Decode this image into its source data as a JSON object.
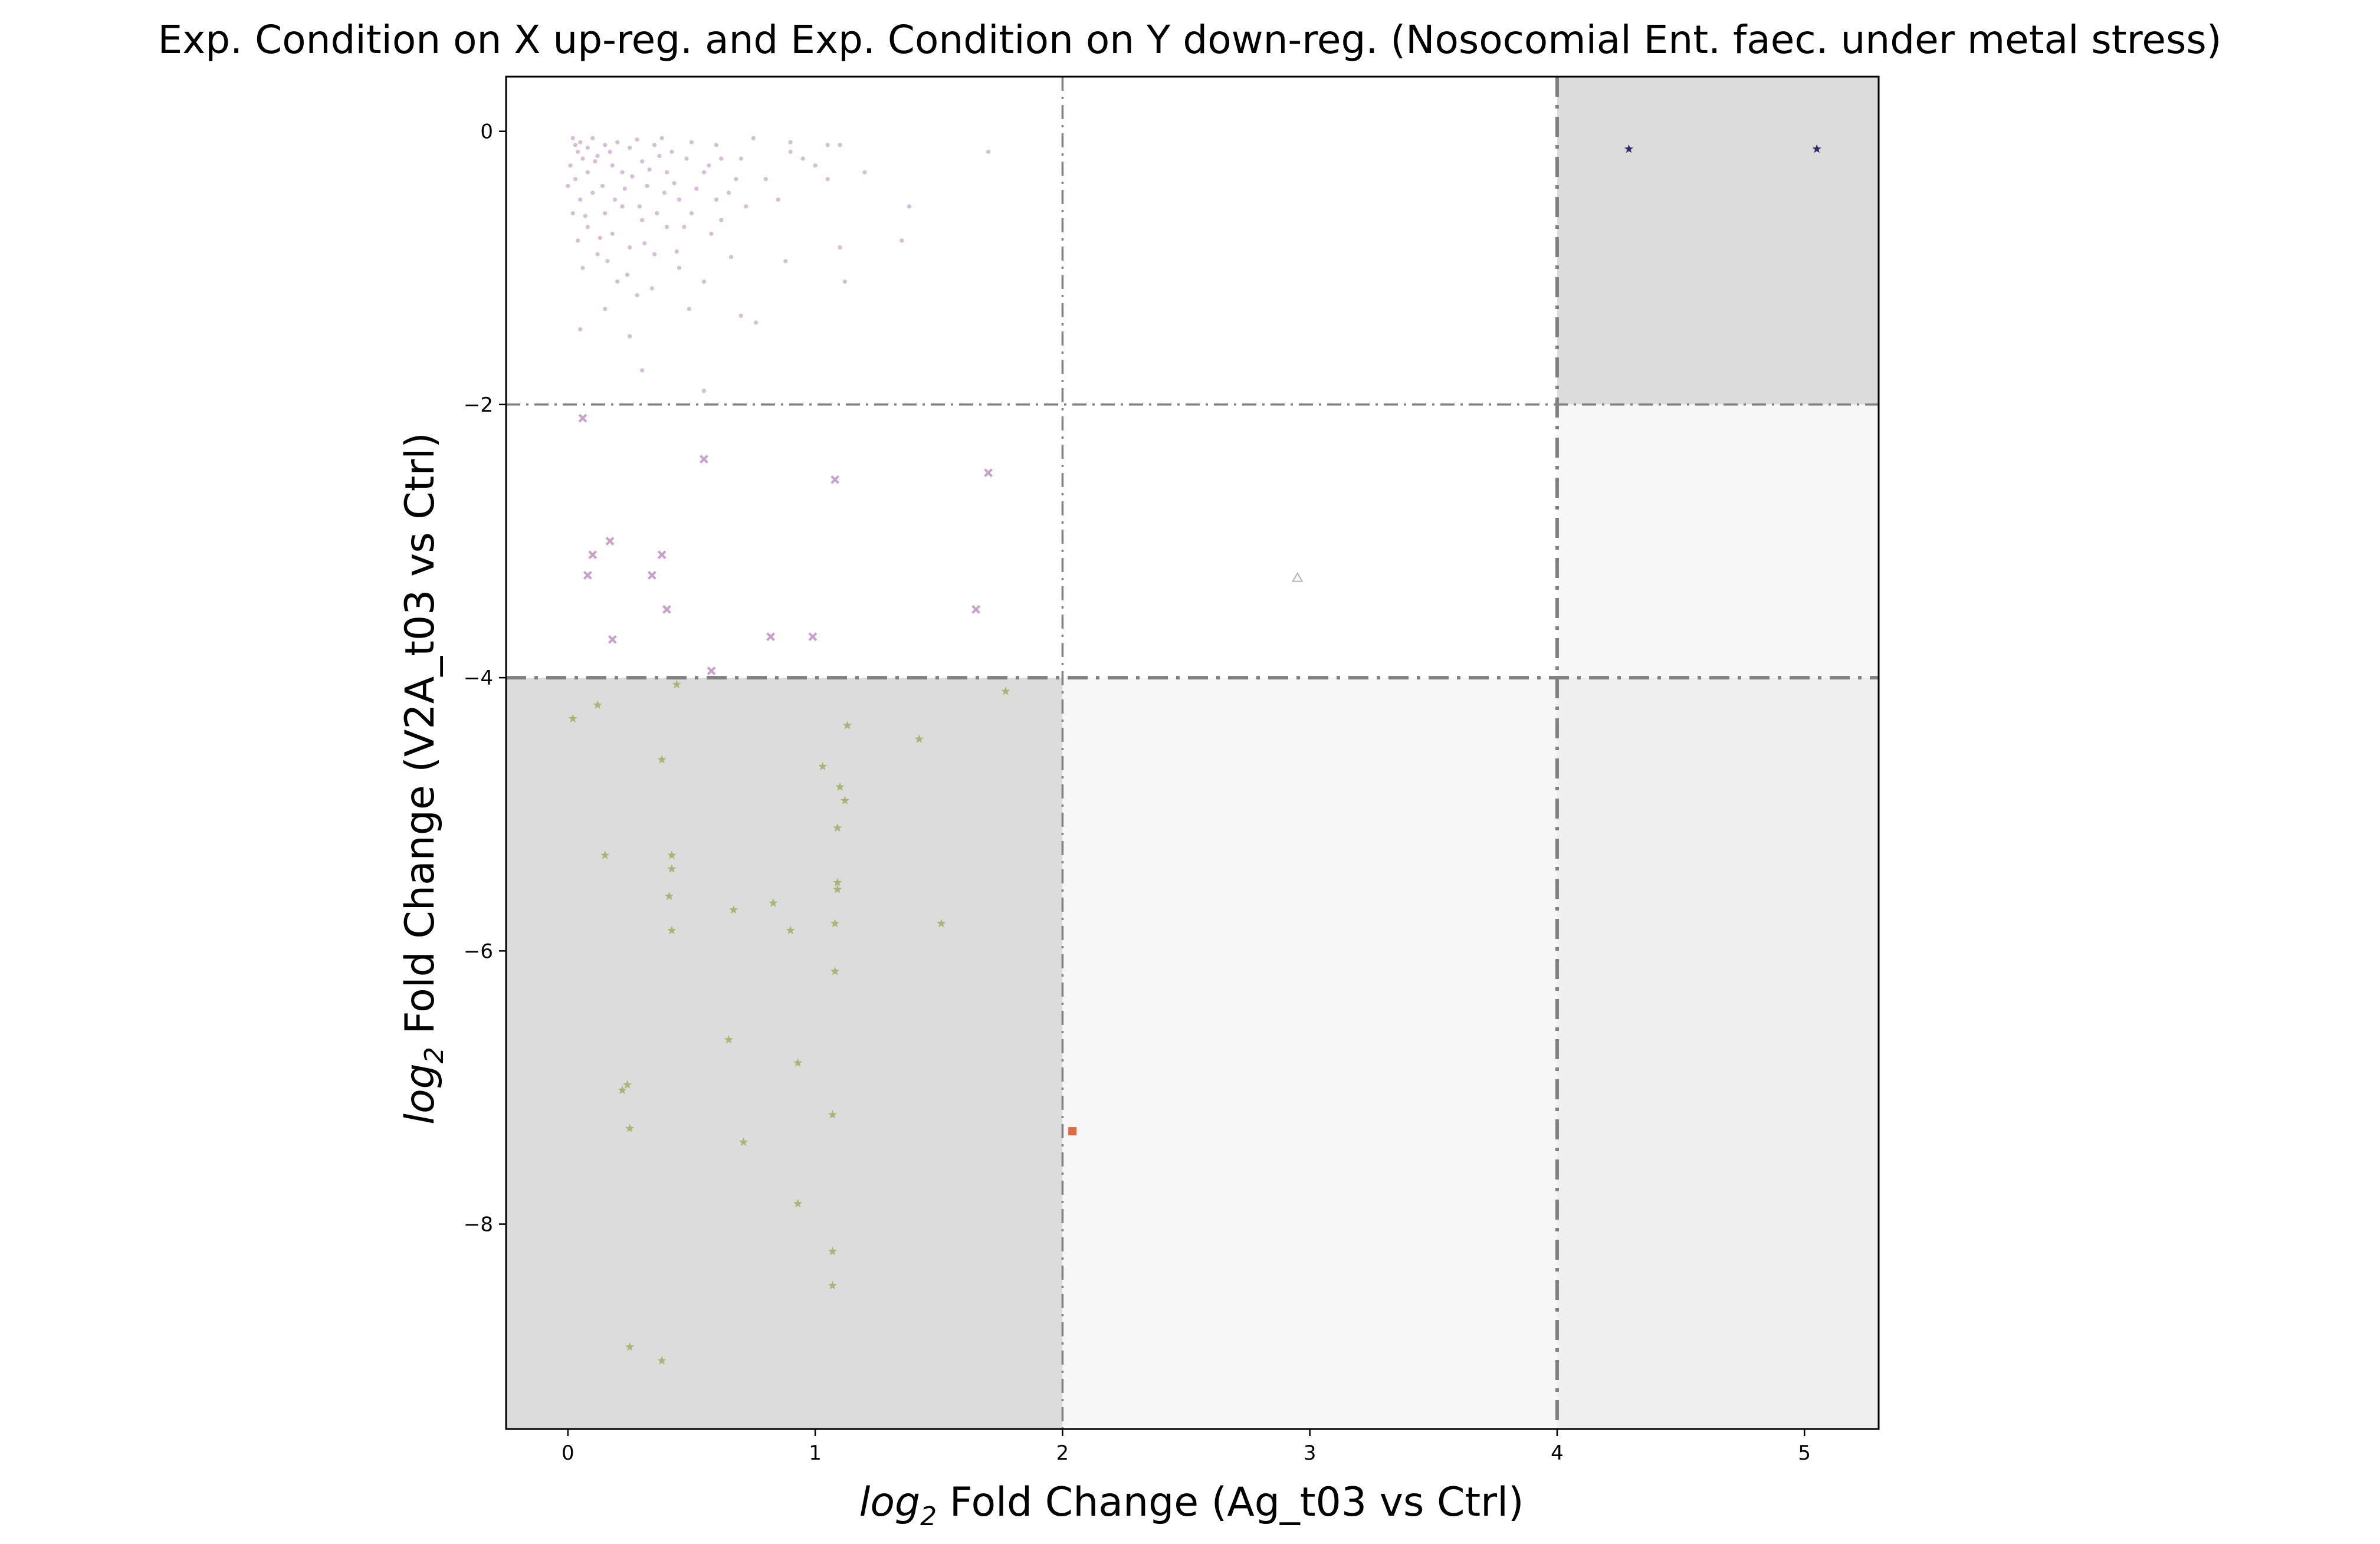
{
  "chart_data": {
    "type": "scatter",
    "title": "Exp. Condition on X up-reg. and Exp. Condition on Y down-reg. (Nosocomial Ent. faec. under metal stress)",
    "xlabel": "log2 Fold Change (Ag_t03 vs Ctrl)",
    "ylabel": "log2 Fold Change (V2A_t03 vs Ctrl)",
    "xlabel_parts": {
      "log": "log",
      "sub": "2",
      "rest": " Fold Change (Ag_t03 vs Ctrl)"
    },
    "ylabel_parts": {
      "log": "log",
      "sub": "2",
      "rest": " Fold Change (V2A_t03 vs Ctrl)"
    },
    "xlim": [
      -0.25,
      5.3
    ],
    "ylim": [
      -9.5,
      0.4
    ],
    "xticks": [
      0,
      1,
      2,
      3,
      4,
      5
    ],
    "yticks": [
      0,
      -2,
      -4,
      -6,
      -8
    ],
    "threshold_lines": {
      "x": [
        2,
        4
      ],
      "y": [
        -2,
        -4
      ]
    },
    "shaded_regions": [
      {
        "x": [
          -0.25,
          2
        ],
        "y": [
          -9.5,
          -4
        ],
        "color": "#dcdcdc"
      },
      {
        "x": [
          4,
          5.3
        ],
        "y": [
          -2,
          0.4
        ],
        "color": "#dcdcdc"
      },
      {
        "x": [
          2,
          4
        ],
        "y": [
          -9.5,
          -4
        ],
        "color": "#f7f7f7"
      },
      {
        "x": [
          4,
          5.3
        ],
        "y": [
          -4,
          -2
        ],
        "color": "#f7f7f7"
      },
      {
        "x": [
          4,
          5.3
        ],
        "y": [
          -9.5,
          -4
        ],
        "color": "#efefef"
      }
    ],
    "grid": false,
    "legend": "none",
    "series": [
      {
        "marker": "dot",
        "color": "#c9a7cf",
        "points": [
          [
            0.02,
            -0.05
          ],
          [
            0.03,
            -0.1
          ],
          [
            0.05,
            -0.08
          ],
          [
            0.04,
            -0.15
          ],
          [
            0.06,
            -0.2
          ],
          [
            0.08,
            -0.12
          ],
          [
            0.1,
            -0.05
          ],
          [
            0.12,
            -0.18
          ],
          [
            0.15,
            -0.1
          ],
          [
            0.18,
            -0.25
          ],
          [
            0.2,
            -0.08
          ],
          [
            0.22,
            -0.3
          ],
          [
            0.25,
            -0.12
          ],
          [
            0.28,
            -0.06
          ],
          [
            0.3,
            -0.22
          ],
          [
            0.32,
            -0.4
          ],
          [
            0.35,
            -0.1
          ],
          [
            0.38,
            -0.05
          ],
          [
            0.4,
            -0.3
          ],
          [
            0.42,
            -0.15
          ],
          [
            0.45,
            -0.5
          ],
          [
            0.48,
            -0.2
          ],
          [
            0.5,
            -0.08
          ],
          [
            0.55,
            -0.3
          ],
          [
            0.6,
            -0.1
          ],
          [
            0.65,
            -0.45
          ],
          [
            0.7,
            -0.2
          ],
          [
            0.75,
            -0.05
          ],
          [
            0.8,
            -0.35
          ],
          [
            0.9,
            -0.15
          ],
          [
            1.0,
            -0.25
          ],
          [
            1.05,
            -0.35
          ],
          [
            0.03,
            -0.35
          ],
          [
            0.05,
            -0.5
          ],
          [
            0.02,
            -0.6
          ],
          [
            0.04,
            -0.8
          ],
          [
            0.06,
            -1.0
          ],
          [
            0.08,
            -0.7
          ],
          [
            0.1,
            -0.45
          ],
          [
            0.12,
            -0.9
          ],
          [
            0.15,
            -0.6
          ],
          [
            0.18,
            -0.75
          ],
          [
            0.2,
            -1.1
          ],
          [
            0.22,
            -0.55
          ],
          [
            0.25,
            -0.85
          ],
          [
            0.28,
            -1.2
          ],
          [
            0.3,
            -0.65
          ],
          [
            0.35,
            -0.9
          ],
          [
            0.4,
            -0.7
          ],
          [
            0.45,
            -1.0
          ],
          [
            0.5,
            -0.6
          ],
          [
            0.55,
            -1.1
          ],
          [
            0.6,
            -0.5
          ],
          [
            0.08,
            -0.3
          ],
          [
            0.11,
            -0.22
          ],
          [
            0.14,
            -0.4
          ],
          [
            0.17,
            -0.15
          ],
          [
            0.19,
            -0.5
          ],
          [
            0.23,
            -0.42
          ],
          [
            0.26,
            -0.33
          ],
          [
            0.29,
            -0.55
          ],
          [
            0.33,
            -0.28
          ],
          [
            0.36,
            -0.6
          ],
          [
            0.39,
            -0.45
          ],
          [
            0.43,
            -0.38
          ],
          [
            0.47,
            -0.7
          ],
          [
            0.52,
            -0.42
          ],
          [
            0.57,
            -0.25
          ],
          [
            0.62,
            -0.65
          ],
          [
            0.68,
            -0.35
          ],
          [
            0.72,
            -0.55
          ],
          [
            0.85,
            -0.5
          ],
          [
            0.95,
            -0.2
          ],
          [
            1.1,
            -0.1
          ],
          [
            1.2,
            -0.3
          ],
          [
            0.01,
            -0.25
          ],
          [
            0.0,
            -0.4
          ],
          [
            0.07,
            -0.62
          ],
          [
            0.13,
            -0.78
          ],
          [
            0.16,
            -0.95
          ],
          [
            0.24,
            -1.05
          ],
          [
            0.31,
            -0.82
          ],
          [
            0.34,
            -1.15
          ],
          [
            0.44,
            -0.88
          ],
          [
            0.49,
            -1.3
          ],
          [
            0.58,
            -0.75
          ],
          [
            0.66,
            -0.92
          ],
          [
            0.76,
            -1.4
          ],
          [
            0.88,
            -0.95
          ],
          [
            1.1,
            -0.85
          ],
          [
            1.12,
            -1.1
          ],
          [
            1.35,
            -0.8
          ],
          [
            1.38,
            -0.55
          ],
          [
            0.05,
            -1.45
          ],
          [
            0.3,
            -1.75
          ],
          [
            0.55,
            -1.9
          ],
          [
            0.7,
            -1.35
          ],
          [
            0.15,
            -1.3
          ],
          [
            0.25,
            -1.5
          ],
          [
            1.7,
            -0.15
          ],
          [
            1.05,
            -0.1
          ],
          [
            0.9,
            -0.08
          ],
          [
            0.62,
            -0.2
          ],
          [
            0.37,
            -0.18
          ]
        ]
      },
      {
        "marker": "x",
        "color": "#c9a0cc",
        "points": [
          [
            0.06,
            -2.1
          ],
          [
            0.55,
            -2.4
          ],
          [
            1.08,
            -2.55
          ],
          [
            1.7,
            -2.5
          ],
          [
            0.17,
            -3.0
          ],
          [
            0.1,
            -3.1
          ],
          [
            0.38,
            -3.1
          ],
          [
            0.08,
            -3.25
          ],
          [
            0.34,
            -3.25
          ],
          [
            0.4,
            -3.5
          ],
          [
            1.65,
            -3.5
          ],
          [
            0.18,
            -3.72
          ],
          [
            0.82,
            -3.7
          ],
          [
            0.99,
            -3.7
          ],
          [
            0.58,
            -3.95
          ]
        ]
      },
      {
        "marker": "triangle",
        "color": "#b8b0b8",
        "points": [
          [
            2.95,
            -3.27
          ]
        ]
      },
      {
        "marker": "star",
        "color": "#a5b773",
        "points": [
          [
            0.44,
            -4.05
          ],
          [
            1.77,
            -4.1
          ],
          [
            0.12,
            -4.2
          ],
          [
            0.02,
            -4.3
          ],
          [
            1.13,
            -4.35
          ],
          [
            1.42,
            -4.45
          ],
          [
            0.38,
            -4.6
          ],
          [
            1.03,
            -4.65
          ],
          [
            1.1,
            -4.8
          ],
          [
            1.12,
            -4.9
          ],
          [
            1.09,
            -5.1
          ],
          [
            0.15,
            -5.3
          ],
          [
            0.42,
            -5.3
          ],
          [
            0.42,
            -5.4
          ],
          [
            1.09,
            -5.5
          ],
          [
            1.09,
            -5.55
          ],
          [
            0.41,
            -5.6
          ],
          [
            0.83,
            -5.65
          ],
          [
            0.67,
            -5.7
          ],
          [
            1.51,
            -5.8
          ],
          [
            1.08,
            -5.8
          ],
          [
            0.9,
            -5.85
          ],
          [
            0.42,
            -5.85
          ],
          [
            1.08,
            -6.15
          ],
          [
            0.65,
            -6.65
          ],
          [
            0.93,
            -6.82
          ],
          [
            0.24,
            -6.98
          ],
          [
            0.22,
            -7.02
          ],
          [
            1.07,
            -7.2
          ],
          [
            0.25,
            -7.3
          ],
          [
            0.71,
            -7.4
          ],
          [
            0.93,
            -7.85
          ],
          [
            1.07,
            -8.2
          ],
          [
            1.07,
            -8.45
          ],
          [
            0.25,
            -8.9
          ],
          [
            0.38,
            -9.0
          ]
        ]
      },
      {
        "marker": "square",
        "color": "#e36a3e",
        "points": [
          [
            2.04,
            -7.32
          ]
        ]
      },
      {
        "marker": "star",
        "color": "#2c2d6e",
        "points": [
          [
            4.29,
            -0.13
          ],
          [
            5.05,
            -0.13
          ]
        ]
      }
    ]
  }
}
